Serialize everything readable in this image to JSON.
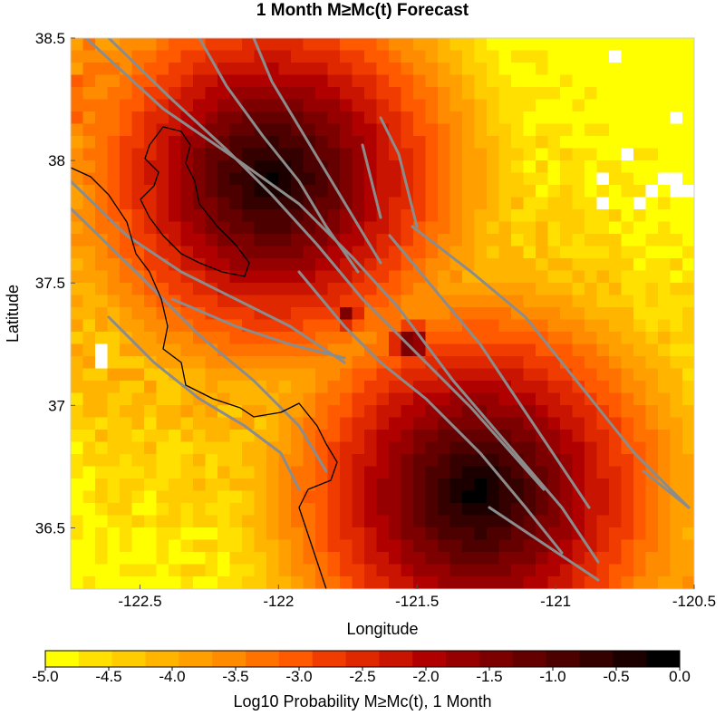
{
  "title": "1 Month M≥Mc(t) Forecast",
  "map": {
    "lon_range": [
      -122.75,
      -120.5
    ],
    "lat_range": [
      36.25,
      38.5
    ],
    "x_label": "Longitude",
    "y_label": "Latitude",
    "x_ticks": [
      -122.5,
      -122,
      -121.5,
      -121,
      -120.5
    ],
    "x_tick_labels": [
      "-122.5",
      "-122",
      "-121.5",
      "-121",
      "-120.5"
    ],
    "y_ticks": [
      38.5,
      38,
      37.5,
      37,
      36.5
    ],
    "y_tick_labels": [
      "38.5",
      "38",
      "37.5",
      "37",
      "36.5"
    ],
    "hotspots": [
      {
        "lon": -121.28,
        "lat": 36.64,
        "peak_log10": -0.05
      },
      {
        "lon": -122.02,
        "lat": 37.93,
        "peak_log10": -0.1
      },
      {
        "lon": -121.75,
        "lat": 37.37,
        "peak_log10": -1.3
      },
      {
        "lon": -121.52,
        "lat": 37.25,
        "peak_log10": -0.6
      }
    ]
  },
  "colorbar": {
    "label": "Log10 Probability M≥Mc(t), 1 Month",
    "min": -5.0,
    "max": 0.0,
    "tick_labels": [
      "-5.0",
      "-4.5",
      "-4.0",
      "-3.5",
      "-3.0",
      "-2.5",
      "-2.0",
      "-1.5",
      "-1.0",
      "-0.5",
      "0.0"
    ],
    "colors": [
      "#ffff00",
      "#ffe000",
      "#ffcc00",
      "#ffb400",
      "#ffa000",
      "#ff8c00",
      "#ff7200",
      "#ff5a00",
      "#f03c00",
      "#e02800",
      "#c81400",
      "#b00000",
      "#960000",
      "#7c0000",
      "#640000",
      "#4c0000",
      "#340000",
      "#1c0000",
      "#000000"
    ]
  }
}
